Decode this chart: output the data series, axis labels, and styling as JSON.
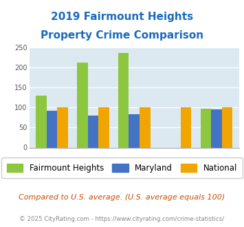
{
  "title_line1": "2019 Fairmount Heights",
  "title_line2": "Property Crime Comparison",
  "cat_labels_top": [
    "",
    "Burglary",
    "",
    "Arson",
    ""
  ],
  "cat_labels_bot": [
    "All Property Crime",
    "",
    "Motor Vehicle Theft",
    "",
    "Larceny & Theft"
  ],
  "fairmount": [
    130,
    212,
    237,
    0,
    98
  ],
  "maryland": [
    92,
    80,
    84,
    0,
    96
  ],
  "national": [
    100,
    100,
    100,
    100,
    100
  ],
  "colors": {
    "fairmount": "#8dc63f",
    "maryland": "#4472c4",
    "national": "#f0a500"
  },
  "ylim": [
    0,
    250
  ],
  "yticks": [
    0,
    50,
    100,
    150,
    200,
    250
  ],
  "background_color": "#dce9f0",
  "title_color": "#1a6bbf",
  "footer_note": "Compared to U.S. average. (U.S. average equals 100)",
  "copyright": "© 2025 CityRating.com - https://www.cityrating.com/crime-statistics/",
  "legend_labels": [
    "Fairmount Heights",
    "Maryland",
    "National"
  ],
  "bar_width": 0.26
}
